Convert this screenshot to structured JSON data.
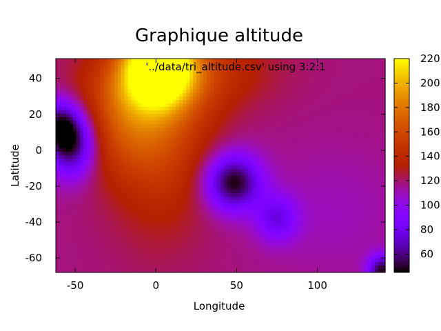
{
  "chart_data": {
    "type": "heatmap",
    "title": "Graphique altitude",
    "xlabel": "Longitude",
    "ylabel": "Latitude",
    "key_label": "'../data/tri_altitude.csv' using 3:2:1",
    "xlim": [
      -62,
      142
    ],
    "ylim": [
      -68,
      51
    ],
    "clim": [
      45,
      220
    ],
    "x_ticks": [
      -50,
      0,
      50,
      100
    ],
    "y_ticks": [
      -60,
      -40,
      -20,
      0,
      20,
      40
    ],
    "colorbar_ticks": [
      60,
      80,
      100,
      120,
      140,
      160,
      180,
      200,
      220
    ],
    "palette": "gnuplot pm3d (black-blue-magenta-orange-yellow-white)",
    "grid": false,
    "base_altitude": 118,
    "features": [
      {
        "kind": "peak",
        "x": 2,
        "y": 48,
        "value": 222,
        "sx": 14,
        "sy": 14
      },
      {
        "kind": "peak",
        "x": 2,
        "y": 20,
        "value": 160,
        "sx": 22,
        "sy": 40
      },
      {
        "kind": "peak",
        "x": -10,
        "y": 35,
        "value": 150,
        "sx": 25,
        "sy": 15
      },
      {
        "kind": "peak",
        "x": 30,
        "y": 45,
        "value": 140,
        "sx": 30,
        "sy": 15
      },
      {
        "kind": "peak",
        "x": -20,
        "y": 10,
        "value": 140,
        "sx": 18,
        "sy": 18
      },
      {
        "kind": "basin",
        "x": -52,
        "y": 4,
        "value": 50,
        "sx": 10,
        "sy": 13
      },
      {
        "kind": "basin",
        "x": -60,
        "y": 14,
        "value": 70,
        "sx": 8,
        "sy": 10
      },
      {
        "kind": "basin",
        "x": 48,
        "y": -18,
        "value": 45,
        "sx": 12,
        "sy": 11
      },
      {
        "kind": "basin",
        "x": 75,
        "y": -38,
        "value": 80,
        "sx": 9,
        "sy": 9
      },
      {
        "kind": "basin",
        "x": 140,
        "y": -67,
        "value": 50,
        "sx": 6,
        "sy": 6
      },
      {
        "kind": "basin",
        "x": 110,
        "y": -35,
        "value": 110,
        "sx": 30,
        "sy": 25
      }
    ]
  }
}
